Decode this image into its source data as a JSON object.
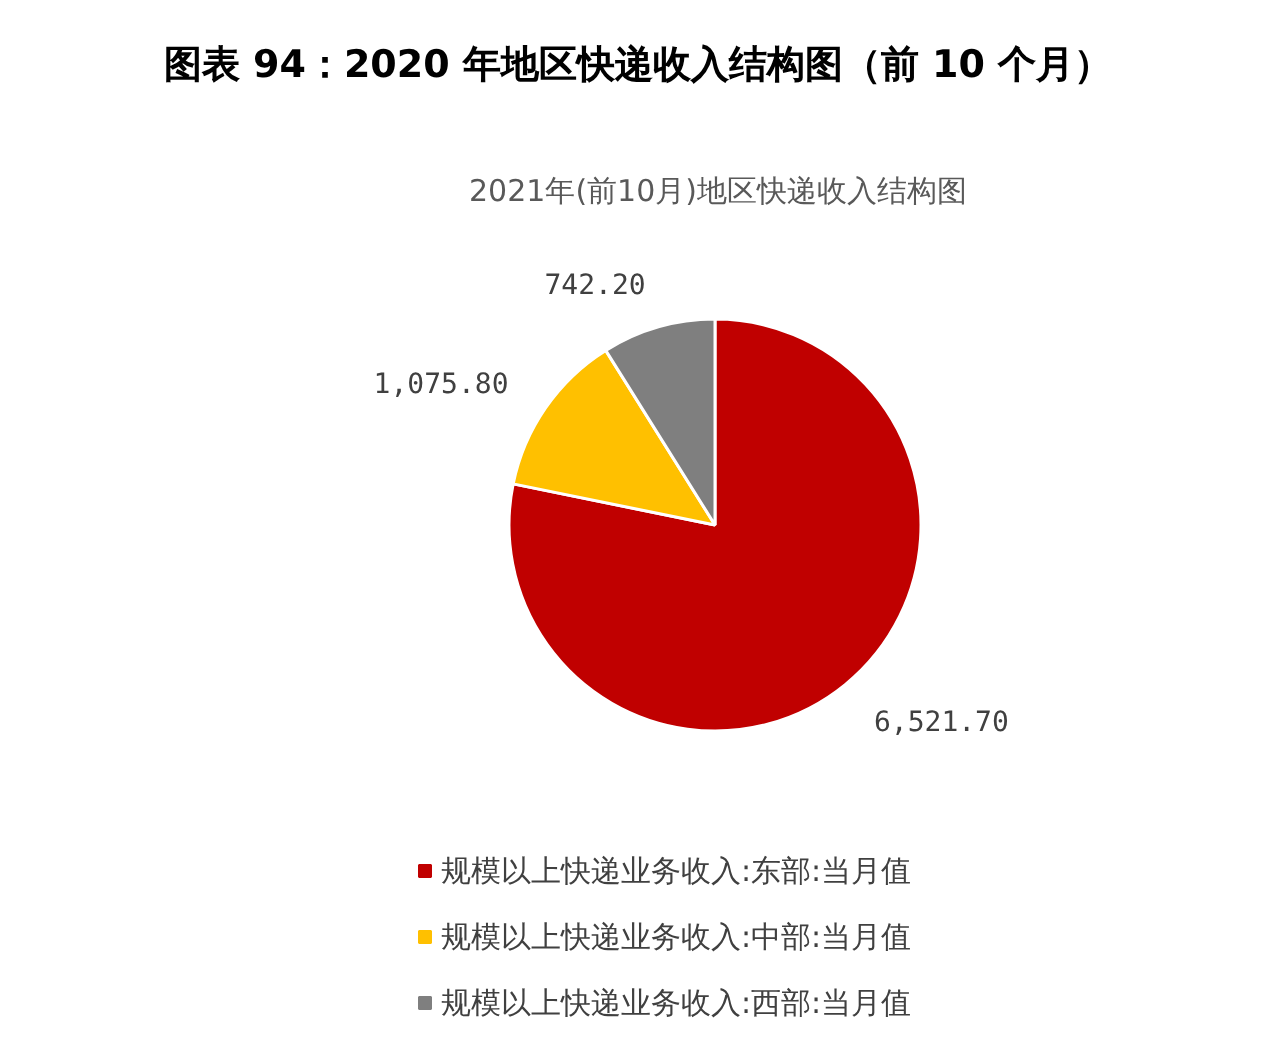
{
  "chart_data": {
    "type": "pie",
    "title": "图表 94：2020 年地区快递收入结构图（前 10 个月）",
    "subtitle": "2021年(前10月)地区快递收入结构图",
    "categories": [
      "规模以上快递业务收入:东部:当月值",
      "规模以上快递业务收入:中部:当月值",
      "规模以上快递业务收入:西部:当月值"
    ],
    "values": [
      6521.7,
      1075.8,
      742.2
    ],
    "colors": [
      "#c00000",
      "#ffc000",
      "#7f7f7f"
    ],
    "value_labels": [
      "6,521.70",
      "1,075.80",
      "742.20"
    ],
    "legend": "bottom"
  }
}
